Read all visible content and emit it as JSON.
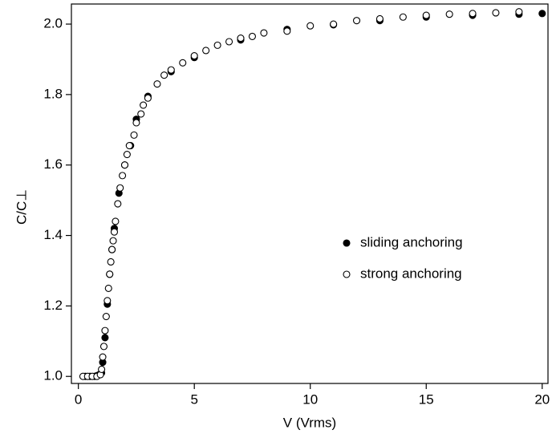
{
  "chart_data": {
    "type": "scatter",
    "x_label": "V (Vrms)",
    "y_label": "C/C⊥",
    "xlim": [
      -0.3,
      20.25
    ],
    "ylim": [
      0.98,
      2.057
    ],
    "xticks": [
      0,
      5,
      10,
      15,
      20
    ],
    "yticks": [
      {
        "value": 1.0,
        "label": "1.0"
      },
      1.2,
      1.4,
      1.6,
      1.8,
      {
        "value": 2.0,
        "label": "2.0"
      }
    ],
    "legend": "right",
    "series": [
      {
        "name": "sliding anchoring",
        "color": "#000000",
        "filled": true,
        "x": [
          0.3,
          0.5,
          0.7,
          0.8,
          0.9,
          1.0,
          1.05,
          1.15,
          1.25,
          1.35,
          1.45,
          1.55,
          1.75,
          2.0,
          2.25,
          2.5,
          3.0,
          4.0,
          5.0,
          7.0,
          9.0,
          11.0,
          13.0,
          15.0,
          17.0,
          19.0,
          20.0
        ],
        "values": [
          1.0,
          1.0,
          1.0,
          1.002,
          1.005,
          1.01,
          1.04,
          1.11,
          1.205,
          1.29,
          1.36,
          1.42,
          1.52,
          1.6,
          1.655,
          1.73,
          1.795,
          1.865,
          1.905,
          1.955,
          1.985,
          1.998,
          2.01,
          2.02,
          2.025,
          2.028,
          2.03
        ]
      },
      {
        "name": "strong anchoring",
        "color": "#000000",
        "filled": false,
        "x": [
          0.2,
          0.4,
          0.6,
          0.8,
          0.95,
          1.0,
          1.05,
          1.1,
          1.15,
          1.2,
          1.25,
          1.3,
          1.35,
          1.4,
          1.45,
          1.5,
          1.55,
          1.6,
          1.7,
          1.8,
          1.9,
          2.0,
          2.1,
          2.2,
          2.4,
          2.5,
          2.7,
          2.8,
          3.0,
          3.4,
          3.7,
          4.0,
          4.5,
          5.0,
          5.5,
          6.0,
          6.5,
          7.0,
          7.5,
          8.0,
          9.0,
          10.0,
          11.0,
          12.0,
          13.0,
          14.0,
          15.0,
          16.0,
          17.0,
          18.0,
          19.0
        ],
        "values": [
          1.0,
          1.0,
          1.0,
          1.0,
          1.005,
          1.02,
          1.055,
          1.085,
          1.13,
          1.17,
          1.215,
          1.25,
          1.29,
          1.325,
          1.36,
          1.385,
          1.41,
          1.44,
          1.49,
          1.535,
          1.57,
          1.6,
          1.63,
          1.655,
          1.685,
          1.72,
          1.745,
          1.77,
          1.79,
          1.83,
          1.855,
          1.87,
          1.89,
          1.91,
          1.925,
          1.94,
          1.95,
          1.96,
          1.965,
          1.975,
          1.98,
          1.995,
          2.0,
          2.01,
          2.015,
          2.02,
          2.025,
          2.028,
          2.03,
          2.032,
          2.035
        ]
      }
    ]
  }
}
